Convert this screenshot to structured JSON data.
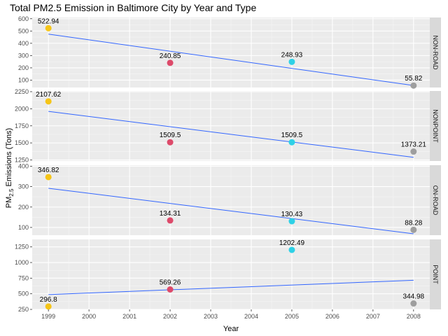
{
  "chart_data": {
    "type": "scatter",
    "title": "Total PM2.5 Emission in Baltimore City  by Year and Type",
    "xlabel": "Year",
    "ylabel": "PM2.5 Emissions (Tons)",
    "ylabel_parts": {
      "prefix": "PM",
      "subscript": "2.5",
      "suffix": " Emissions (Tons)"
    },
    "x_ticks": [
      1999,
      2000,
      2001,
      2002,
      2003,
      2004,
      2005,
      2006,
      2007,
      2008
    ],
    "xlim": [
      1998.6,
      2008.4
    ],
    "point_colors": {
      "1999": "#F5C518",
      "2002": "#DD4A6A",
      "2005": "#2ED1E6",
      "2008": "#9E9E9E"
    },
    "trend_color": "#3366FF",
    "panels": [
      {
        "strip": "NON-ROAD",
        "ylim": [
          40,
          610
        ],
        "y_ticks": [
          100,
          200,
          300,
          400,
          500,
          600
        ],
        "points": [
          {
            "x": 1999,
            "y": 522.94,
            "label": "522.94"
          },
          {
            "x": 2002,
            "y": 240.85,
            "label": "240.85"
          },
          {
            "x": 2005,
            "y": 248.93,
            "label": "248.93"
          },
          {
            "x": 2008,
            "y": 55.82,
            "label": "55.82"
          }
        ],
        "trend": [
          [
            1999,
            474.9
          ],
          [
            2008,
            56.4
          ]
        ]
      },
      {
        "strip": "NONPOINT",
        "ylim": [
          1235,
          2260
        ],
        "y_ticks": [
          1250,
          1500,
          1750,
          2000,
          2250
        ],
        "points": [
          {
            "x": 1999,
            "y": 2107.62,
            "label": "2107.62"
          },
          {
            "x": 2002,
            "y": 1509.5,
            "label": "1509.5"
          },
          {
            "x": 2005,
            "y": 1509.5,
            "label": "1509.5"
          },
          {
            "x": 2008,
            "y": 1373.21,
            "label": "1373.21"
          }
        ],
        "trend": [
          [
            1999,
            1962
          ],
          [
            2008,
            1289
          ]
        ]
      },
      {
        "strip": "ON-ROAD",
        "ylim": [
          62,
          405
        ],
        "y_ticks": [
          100,
          200,
          300,
          400
        ],
        "points": [
          {
            "x": 1999,
            "y": 346.82,
            "label": "346.82"
          },
          {
            "x": 2002,
            "y": 134.31,
            "label": "134.31"
          },
          {
            "x": 2005,
            "y": 130.43,
            "label": "130.43"
          },
          {
            "x": 2008,
            "y": 88.28,
            "label": "88.28"
          }
        ],
        "trend": [
          [
            1999,
            292
          ],
          [
            2008,
            69
          ]
        ]
      },
      {
        "strip": "POINT",
        "ylim": [
          250,
          1370
        ],
        "y_ticks": [
          250,
          500,
          750,
          1000,
          1250
        ],
        "points": [
          {
            "x": 1999,
            "y": 296.8,
            "label": "296.8"
          },
          {
            "x": 2002,
            "y": 569.26,
            "label": "569.26"
          },
          {
            "x": 2005,
            "y": 1202.49,
            "label": "1202.49"
          },
          {
            "x": 2008,
            "y": 344.98,
            "label": "344.98"
          }
        ],
        "trend": [
          [
            1999,
            487
          ],
          [
            2008,
            716
          ]
        ]
      }
    ]
  }
}
